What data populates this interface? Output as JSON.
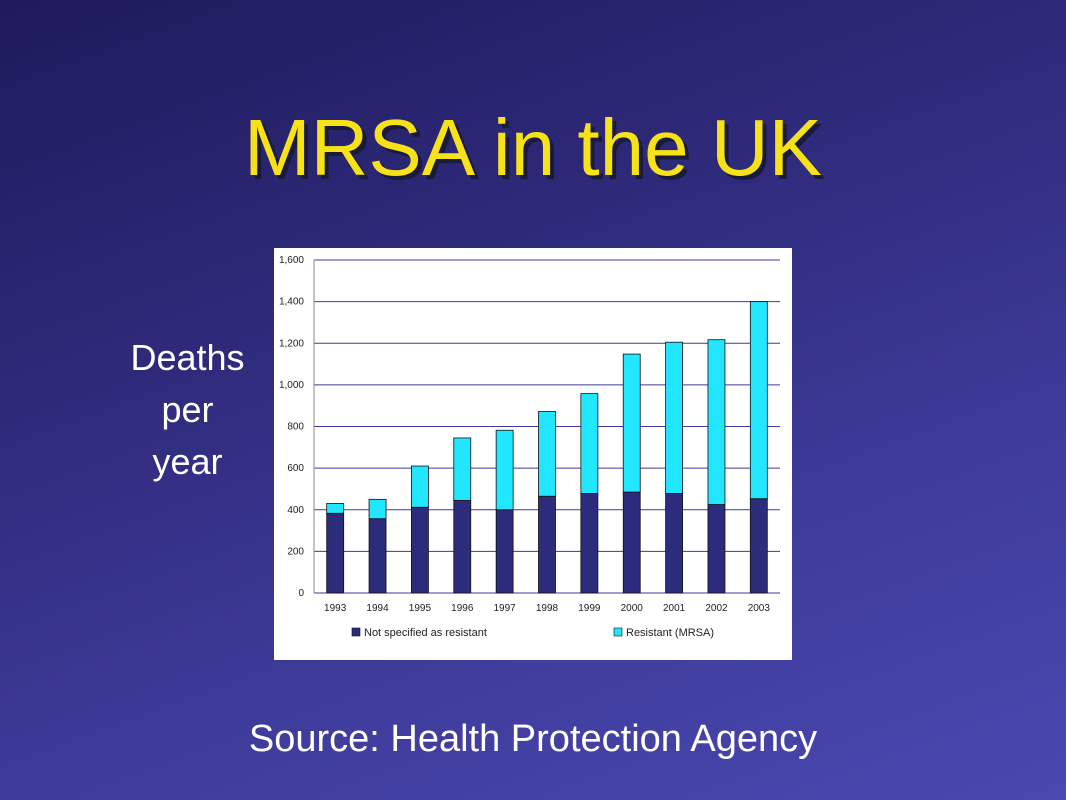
{
  "slide": {
    "title": "MRSA in the UK",
    "ylabel_lines": [
      "Deaths",
      "per",
      "year"
    ],
    "source": "Source: Health Protection Agency"
  },
  "colors": {
    "title": "#f7e21a",
    "not_specified": "#2d2b7c",
    "mrsa": "#22e6ff"
  },
  "chart_data": {
    "type": "bar",
    "stacked": true,
    "categories": [
      "1993",
      "1994",
      "1995",
      "1996",
      "1997",
      "1998",
      "1999",
      "2000",
      "2001",
      "2002",
      "2003"
    ],
    "series": [
      {
        "name": "Not specified as resistant",
        "color": "#2d2b7c",
        "values": [
          383,
          357,
          412,
          445,
          400,
          465,
          478,
          485,
          478,
          425,
          453
        ]
      },
      {
        "name": "Resistant (MRSA)",
        "color": "#22e6ff",
        "values": [
          47,
          93,
          198,
          300,
          382,
          407,
          480,
          663,
          727,
          792,
          947
        ]
      }
    ],
    "ylim": [
      0,
      1600
    ],
    "yticks": [
      0,
      200,
      400,
      600,
      800,
      1000,
      1200,
      1400,
      1600
    ],
    "ytick_labels": [
      "0",
      "200",
      "400",
      "600",
      "800",
      "1,000",
      "1,200",
      "1,400",
      "1,600"
    ],
    "grid": true,
    "legend_position": "bottom"
  }
}
